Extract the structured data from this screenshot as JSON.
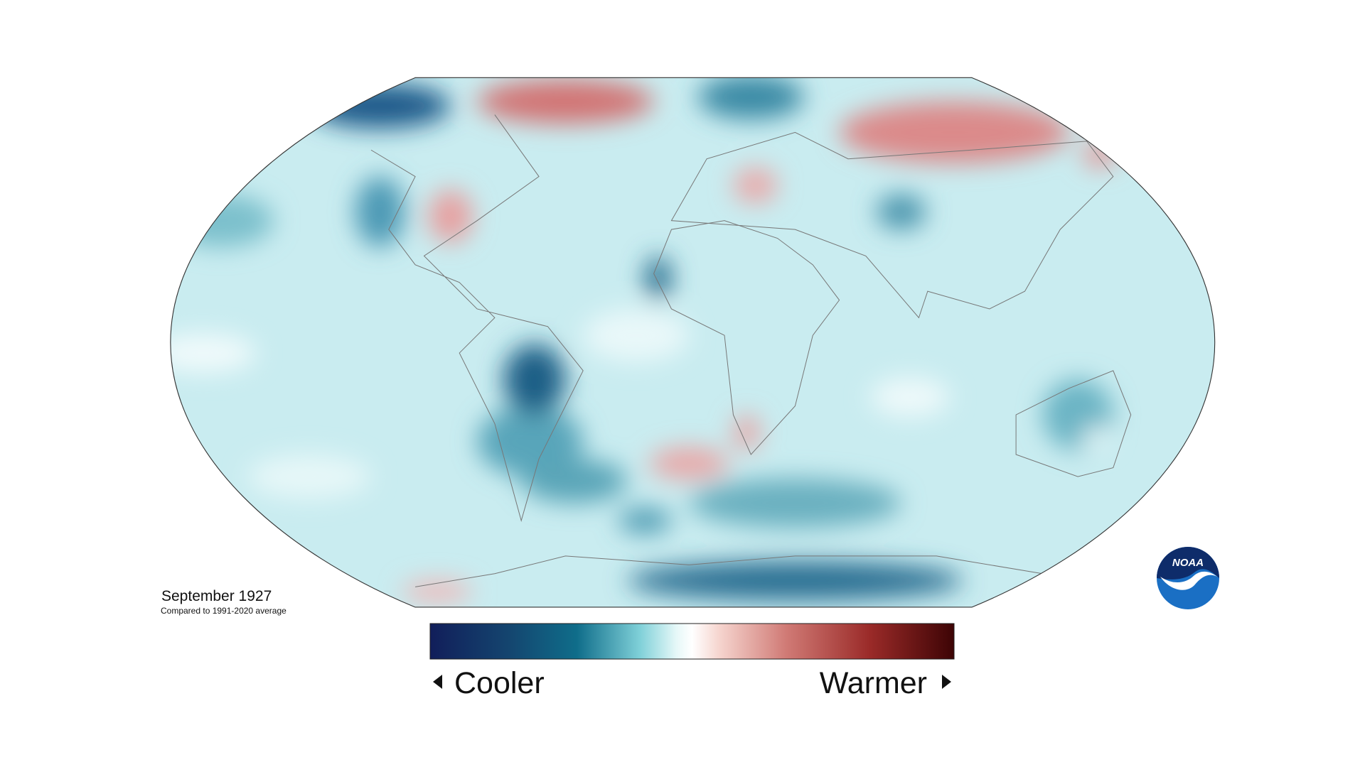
{
  "title": "September 1927",
  "subtitle": "Compared to 1991-2020 average",
  "legend": {
    "low_label": "Cooler",
    "high_label": "Warmer"
  },
  "logo": "NOAA"
}
